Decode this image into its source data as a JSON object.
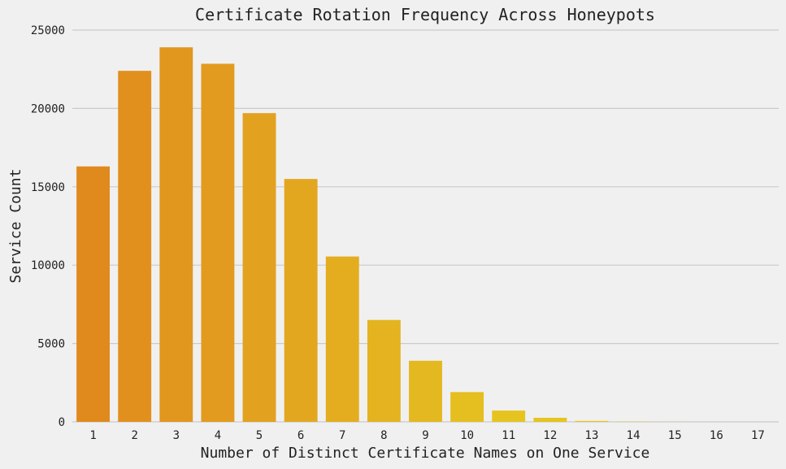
{
  "chart_data": {
    "type": "bar",
    "title": "Certificate Rotation Frequency Across Honeypots",
    "xlabel": "Number of Distinct Certificate Names on One Service",
    "ylabel": "Service Count",
    "categories": [
      "1",
      "2",
      "3",
      "4",
      "5",
      "6",
      "7",
      "8",
      "9",
      "10",
      "11",
      "12",
      "13",
      "14",
      "15",
      "16",
      "17"
    ],
    "values": [
      16300,
      22400,
      23900,
      22850,
      19700,
      15500,
      10550,
      6500,
      3900,
      1900,
      720,
      260,
      60,
      15,
      5,
      2,
      1
    ],
    "ylim": [
      0,
      25000
    ],
    "yticks": [
      0,
      5000,
      10000,
      15000,
      20000,
      25000
    ],
    "ytick_labels": [
      "0",
      "5000",
      "10000",
      "15000",
      "20000",
      "25000"
    ],
    "grid": "horizontal",
    "colors": {
      "background": "#f0f0f0",
      "grid": "#cbcbcb",
      "bar_start": "#e08a1e",
      "bar_end": "#e5c420"
    }
  }
}
